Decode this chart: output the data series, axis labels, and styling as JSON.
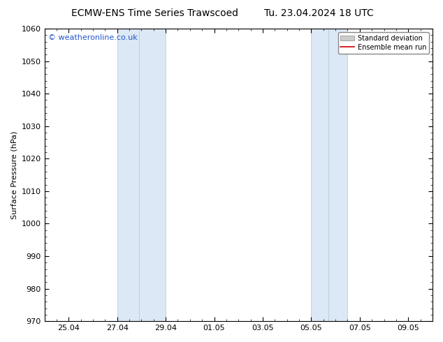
{
  "title_left": "ECMW-ENS Time Series Trawscoed",
  "title_right": "Tu. 23.04.2024 18 UTC",
  "ylabel": "Surface Pressure (hPa)",
  "ylim": [
    970,
    1060
  ],
  "yticks": [
    970,
    980,
    990,
    1000,
    1010,
    1020,
    1030,
    1040,
    1050,
    1060
  ],
  "xtick_labels": [
    "25.04",
    "27.04",
    "29.04",
    "01.05",
    "03.05",
    "05.05",
    "07.05",
    "09.05"
  ],
  "xtick_positions": [
    1,
    3,
    5,
    7,
    9,
    11,
    13,
    15
  ],
  "xlim": [
    0,
    16
  ],
  "shaded_bands": [
    {
      "x_start": 3.0,
      "x_end": 3.9
    },
    {
      "x_start": 3.9,
      "x_end": 5.0
    },
    {
      "x_start": 11.0,
      "x_end": 11.7
    },
    {
      "x_start": 11.7,
      "x_end": 12.5
    }
  ],
  "shaded_color": "#dce8f5",
  "shaded_edge_color": "#b0c8e0",
  "background_color": "#ffffff",
  "plot_bg_color": "#ffffff",
  "watermark_text": "© weatheronline.co.uk",
  "watermark_color": "#2255cc",
  "legend_std_label": "Standard deviation",
  "legend_ens_label": "Ensemble mean run",
  "legend_std_color": "#cccccc",
  "legend_ens_color": "#cc0000",
  "title_fontsize": 10,
  "axis_fontsize": 8,
  "tick_fontsize": 8,
  "watermark_fontsize": 8,
  "grid_color": "#cccccc",
  "spine_color": "#000000",
  "tick_color": "#000000"
}
